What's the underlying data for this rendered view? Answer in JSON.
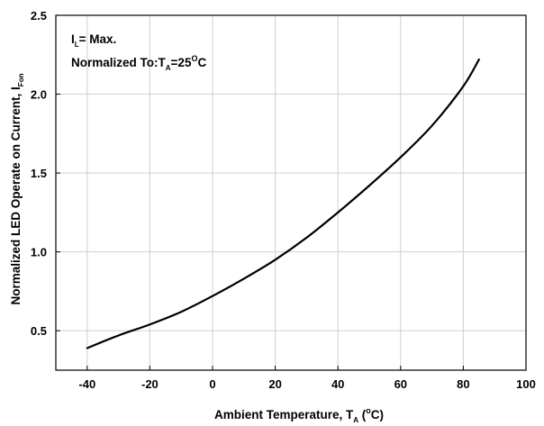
{
  "chart_data": {
    "type": "line",
    "xlabel": {
      "main": "Ambient Temperature, T",
      "sub": "A",
      "paren_open": " (",
      "sup": "o",
      "unit": "C)"
    },
    "ylabel": {
      "main": "Normalized LED Operate on Current, I",
      "sub": "Fon"
    },
    "xlim": [
      -50,
      100
    ],
    "ylim": [
      0.25,
      2.5
    ],
    "xticks": [
      -40,
      -20,
      0,
      20,
      40,
      60,
      80,
      100
    ],
    "yticks": [
      0.5,
      1.0,
      1.5,
      2.0,
      2.5
    ],
    "xtick_labels": [
      "-40",
      "-20",
      "0",
      "20",
      "40",
      "60",
      "80",
      "100"
    ],
    "ytick_labels": [
      "0.5",
      "1.0",
      "1.5",
      "2.0",
      "2.5"
    ],
    "grid": true,
    "annotations": {
      "line1": {
        "a": "I",
        "sub": "L",
        "b": "= Max."
      },
      "line2": {
        "a": "Normalized To:T",
        "sub": "A",
        "b": "=25",
        "sup": "O",
        "c": "C"
      }
    },
    "series": [
      {
        "x": [
          -40,
          -30,
          -20,
          -10,
          0,
          10,
          20,
          30,
          40,
          50,
          60,
          70,
          80,
          85
        ],
        "y": [
          0.39,
          0.47,
          0.54,
          0.62,
          0.72,
          0.83,
          0.95,
          1.09,
          1.25,
          1.42,
          1.6,
          1.8,
          2.05,
          2.22
        ]
      }
    ]
  }
}
